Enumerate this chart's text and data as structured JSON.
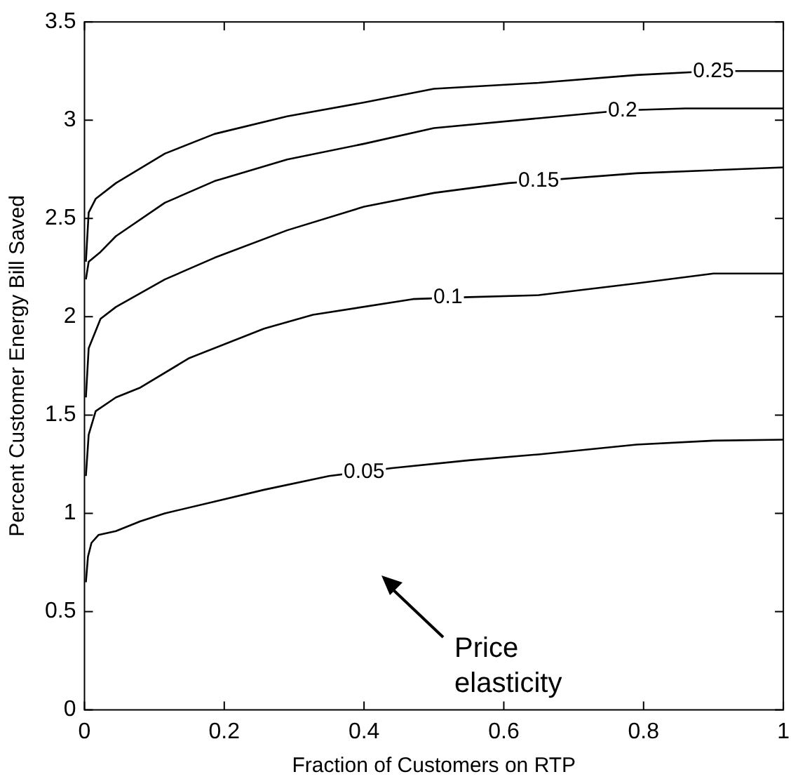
{
  "chart_data": {
    "type": "line",
    "xlabel": "Fraction of Customers on RTP",
    "ylabel": "Percent Customer Energy Bill Saved",
    "xlim": [
      0,
      1
    ],
    "ylim": [
      0,
      3.5
    ],
    "xticks": [
      0,
      0.2,
      0.4,
      0.6,
      0.8,
      1
    ],
    "yticks": [
      0,
      0.5,
      1,
      1.5,
      2,
      2.5,
      3,
      3.5
    ],
    "marker": "none",
    "line_style": "solid",
    "series": [
      {
        "color": "#000000",
        "x": [
          0.002,
          0.005,
          0.01,
          0.02,
          0.045,
          0.08,
          0.115,
          0.186,
          0.257,
          0.35,
          0.44,
          0.55,
          0.65,
          0.79,
          0.9,
          1
        ],
        "values": [
          0.65,
          0.78,
          0.85,
          0.89,
          0.91,
          0.96,
          1.0,
          1.06,
          1.12,
          1.19,
          1.23,
          1.27,
          1.3,
          1.35,
          1.37,
          1.375
        ]
      },
      {
        "color": "#000000",
        "x": [
          0.002,
          0.006,
          0.016,
          0.045,
          0.08,
          0.15,
          0.257,
          0.327,
          0.47,
          0.55,
          0.65,
          0.79,
          0.9,
          1
        ],
        "values": [
          1.19,
          1.4,
          1.52,
          1.59,
          1.64,
          1.79,
          1.94,
          2.01,
          2.09,
          2.1,
          2.11,
          2.17,
          2.22,
          2.22
        ]
      },
      {
        "color": "#000000",
        "x": [
          0.002,
          0.006,
          0.023,
          0.045,
          0.115,
          0.186,
          0.29,
          0.4,
          0.5,
          0.607,
          0.79,
          1
        ],
        "values": [
          1.59,
          1.84,
          1.99,
          2.05,
          2.19,
          2.3,
          2.44,
          2.56,
          2.63,
          2.68,
          2.73,
          2.76
        ]
      },
      {
        "color": "#000000",
        "x": [
          0.002,
          0.006,
          0.023,
          0.045,
          0.115,
          0.186,
          0.29,
          0.4,
          0.5,
          0.65,
          0.77,
          0.86,
          1
        ],
        "values": [
          2.19,
          2.28,
          2.33,
          2.41,
          2.58,
          2.69,
          2.8,
          2.88,
          2.96,
          3.01,
          3.05,
          3.06,
          3.06
        ]
      },
      {
        "color": "#000000",
        "x": [
          0.002,
          0.006,
          0.016,
          0.045,
          0.115,
          0.186,
          0.29,
          0.4,
          0.5,
          0.65,
          0.79,
          0.9,
          1
        ],
        "values": [
          2.28,
          2.53,
          2.6,
          2.68,
          2.83,
          2.93,
          3.02,
          3.09,
          3.16,
          3.19,
          3.23,
          3.25,
          3.25
        ]
      }
    ],
    "annotations": [
      {
        "text": "0.05",
        "x": 0.4,
        "y": 1.21
      },
      {
        "text": "0.1",
        "x": 0.52,
        "y": 2.1
      },
      {
        "text": "0.15",
        "x": 0.65,
        "y": 2.69
      },
      {
        "text": "0.2",
        "x": 0.77,
        "y": 3.05
      },
      {
        "text": "0.25",
        "x": 0.9,
        "y": 3.25
      },
      "Price elasticity"
    ]
  }
}
